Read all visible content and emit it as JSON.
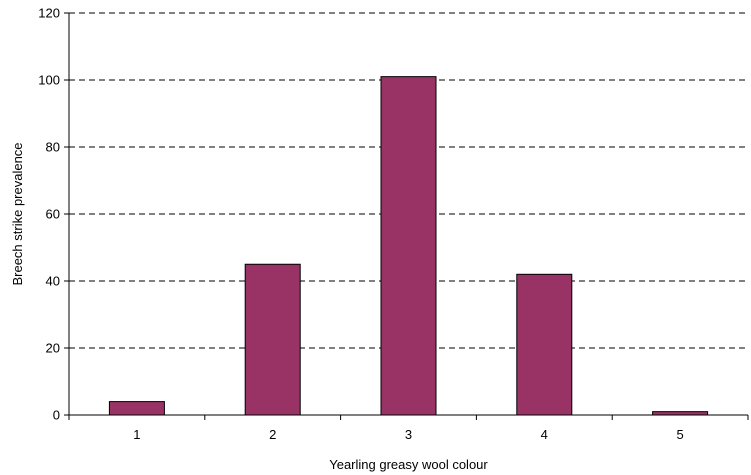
{
  "chart_data": {
    "type": "bar",
    "title": "",
    "xlabel": "Yearling greasy wool colour",
    "ylabel": "Breech strike prevalence",
    "categories": [
      "1",
      "2",
      "3",
      "4",
      "5"
    ],
    "values": [
      4,
      45,
      101,
      42,
      1
    ],
    "ylim": [
      0,
      120
    ],
    "yticks": [
      0,
      20,
      40,
      60,
      80,
      100,
      120
    ],
    "grid": "horizontal dashed",
    "legend": "none",
    "bar_color": "#993366"
  }
}
